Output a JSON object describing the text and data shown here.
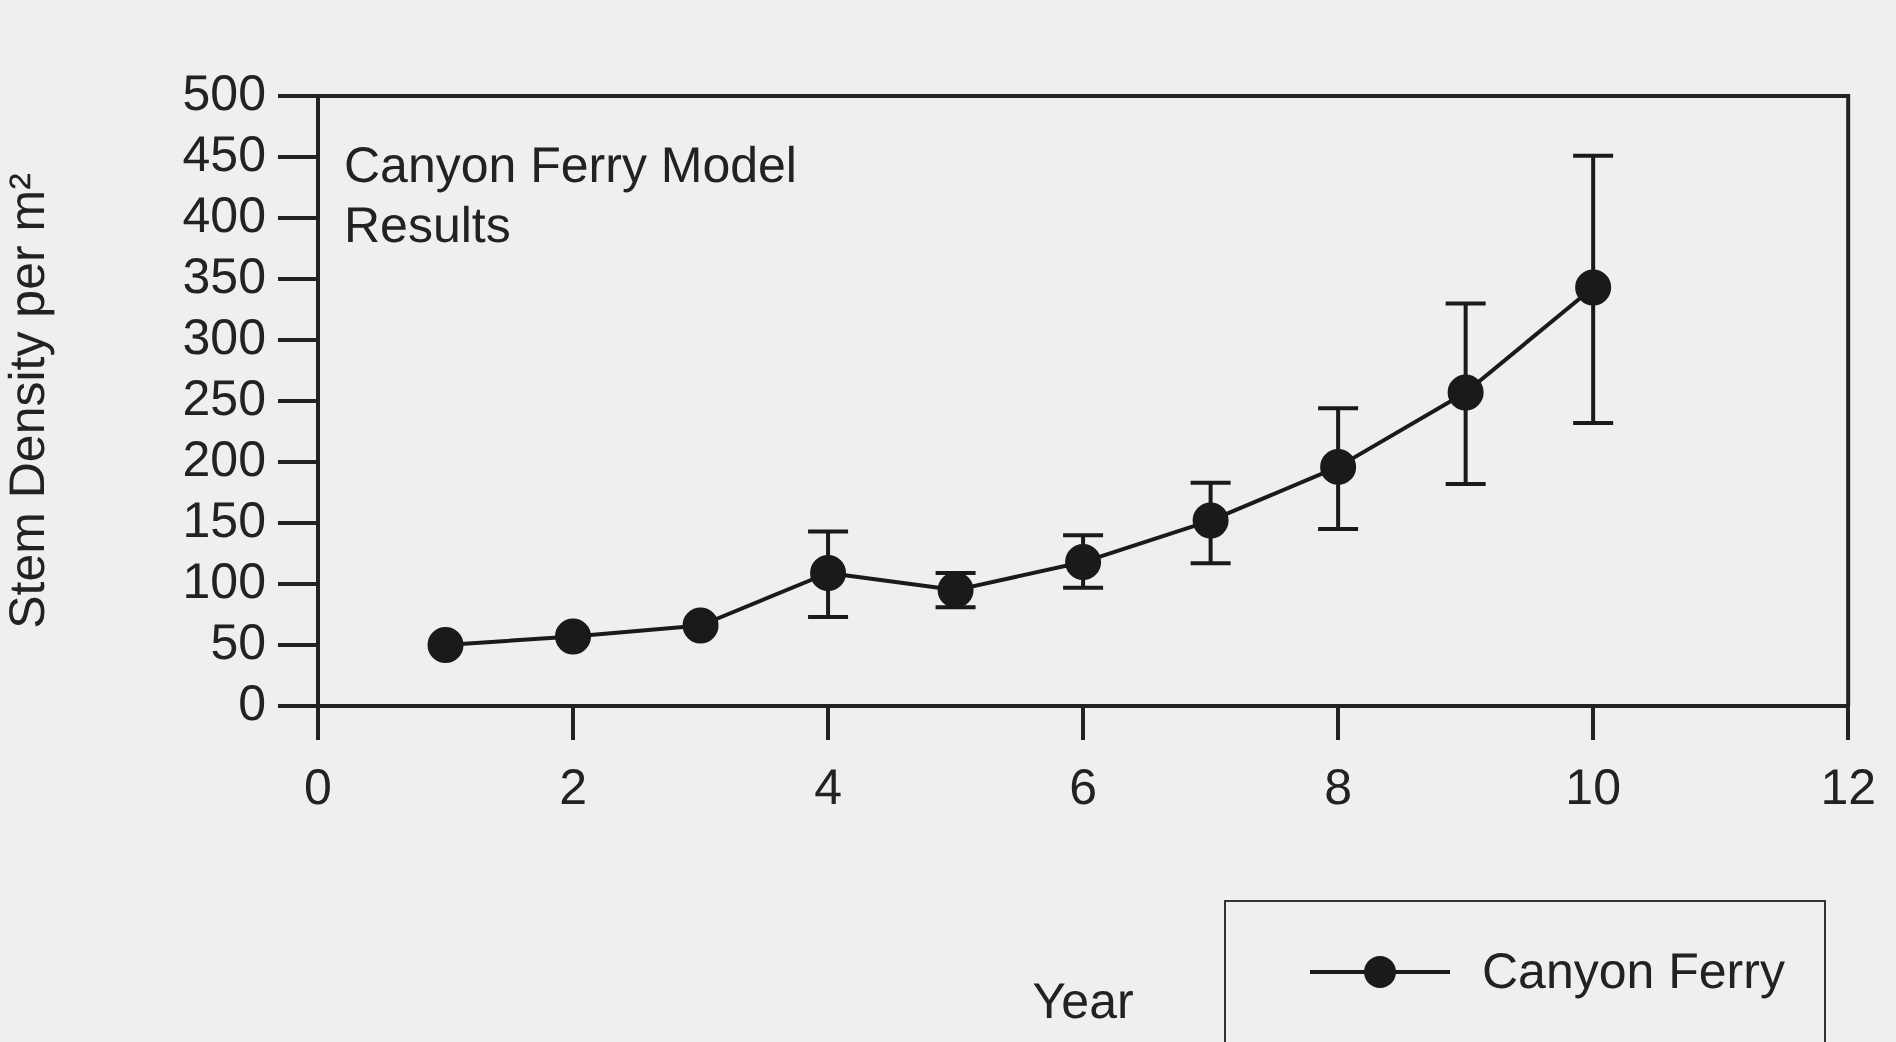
{
  "chart_data": {
    "type": "line",
    "xlabel": "Year",
    "ylabel": "Stem Density per m²",
    "annotations": [
      "Canyon Ferry Model Results"
    ],
    "x": [
      1,
      2,
      3,
      4,
      5,
      6,
      7,
      8,
      9,
      10
    ],
    "series": [
      {
        "name": "Canyon Ferry",
        "color": "#1a1a1a",
        "values": [
          50,
          57,
          66,
          109,
          95,
          118,
          152,
          196,
          257,
          343
        ],
        "errors": [
          null,
          null,
          null,
          [
            73,
            143
          ],
          [
            81,
            109
          ],
          [
            97,
            140
          ],
          [
            117,
            183
          ],
          [
            145,
            244
          ],
          [
            182,
            330
          ],
          [
            232,
            451
          ]
        ]
      }
    ],
    "xlim": [
      0,
      12
    ],
    "xticks": [
      0,
      2,
      4,
      6,
      8,
      10,
      12
    ],
    "ylim": [
      0,
      500
    ],
    "yticks": [
      0,
      50,
      100,
      150,
      200,
      250,
      300,
      350,
      400,
      450,
      500
    ],
    "grid": false,
    "legend": "bottom right",
    "marker": "circle",
    "line_style": "solid"
  }
}
